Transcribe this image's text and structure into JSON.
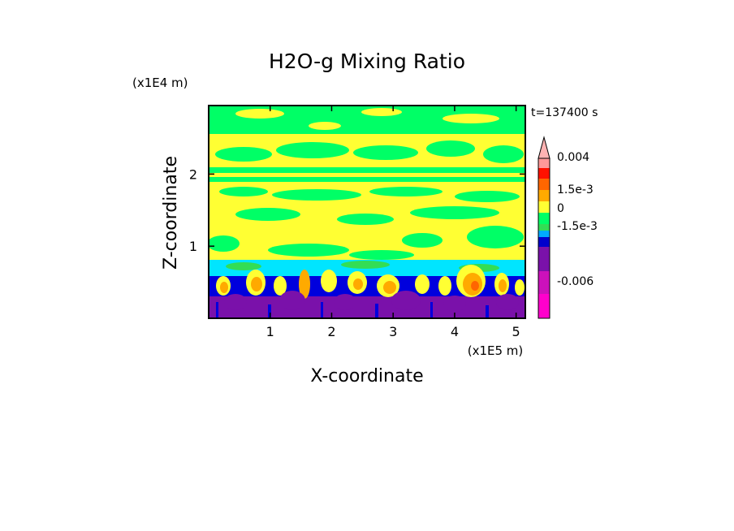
{
  "chart_data": {
    "type": "heatmap",
    "title": "H2O-g Mixing Ratio",
    "xlabel": "X-coordinate",
    "ylabel": "Z-coordinate",
    "x_unit_label": "(x1E5 m)",
    "y_unit_label": "(x1E4 m)",
    "time_label": "t=137400 s",
    "xlim": [
      0,
      5.15
    ],
    "ylim": [
      0,
      2.95
    ],
    "x_ticks": [
      "1",
      "2",
      "3",
      "4",
      "5"
    ],
    "y_ticks": [
      "1",
      "2"
    ],
    "x_tick_values": [
      1,
      2,
      3,
      4,
      5
    ],
    "y_tick_values": [
      1,
      2
    ],
    "colorbar": {
      "tick_labels": [
        "0.004",
        "1.5e-3",
        "0",
        "-1.5e-3",
        "-0.006"
      ],
      "levels": [
        -0.009,
        -0.006,
        -0.003,
        -0.0015,
        -0.001,
        -0.0005,
        0,
        0.0005,
        0.001,
        0.0015,
        0.002,
        0.004
      ],
      "colors": [
        "#ff00cc",
        "#cc11bb",
        "#7a11aa",
        "#0000cc",
        "#00aaff",
        "#33dd55",
        "#00ff66",
        "#ffff33",
        "#ffaa00",
        "#ff6600",
        "#ff1100",
        "#ff9999"
      ],
      "top_arrow_color": "#ffb3b3"
    },
    "layers": [
      {
        "z_range": [
          2.3,
          2.95
        ],
        "dominant_value": "0",
        "colors": [
          "green",
          "yellow"
        ]
      },
      {
        "z_range": [
          1.0,
          2.3
        ],
        "dominant_value": "5e-4",
        "colors": [
          "yellow",
          "green"
        ]
      },
      {
        "z_range": [
          0.6,
          1.0
        ],
        "dominant_value": "-5e-4",
        "colors": [
          "cyan",
          "yellow"
        ]
      },
      {
        "z_range": [
          0.2,
          0.6
        ],
        "dominant_value": "mixed",
        "colors": [
          "blue",
          "orange",
          "yellow"
        ]
      },
      {
        "z_range": [
          0,
          0.2
        ],
        "dominant_value": "-0.003",
        "colors": [
          "purple",
          "blue"
        ]
      }
    ]
  }
}
